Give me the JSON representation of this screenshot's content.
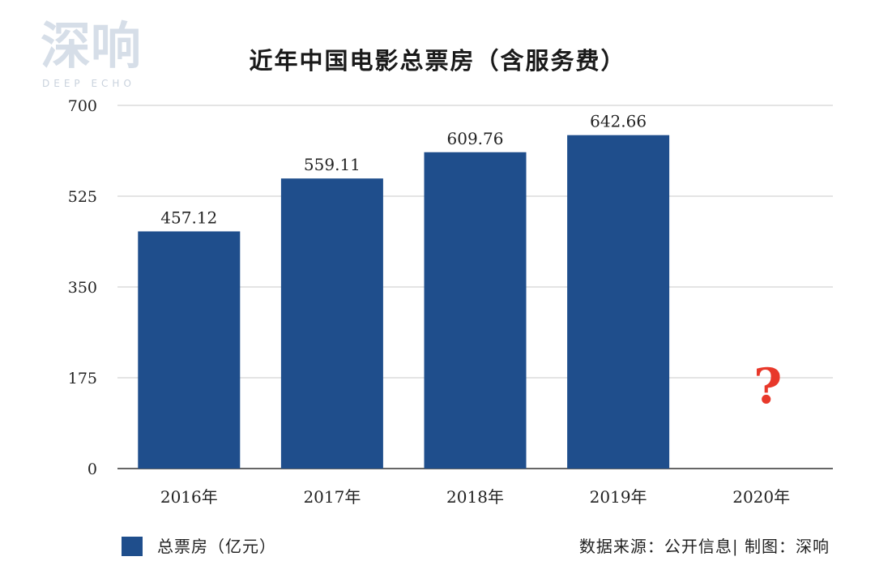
{
  "logo": {
    "cn": "深响",
    "en": "DEEP ECHO"
  },
  "colors": {
    "bar": "#1f4e8c",
    "question": "#e8382a",
    "grid": "#c8c8c8",
    "axis": "#333333"
  },
  "chart_data": {
    "type": "bar",
    "title": "近年中国电影总票房（含服务费）",
    "categories": [
      "2016年",
      "2017年",
      "2018年",
      "2019年",
      "2020年"
    ],
    "series": [
      {
        "name": "总票房（亿元）",
        "values": [
          457.12,
          559.11,
          609.76,
          642.66,
          null
        ]
      }
    ],
    "data_labels": [
      "457.12",
      "559.11",
      "609.76",
      "642.66"
    ],
    "annotation": "?",
    "ylim": [
      0,
      700
    ],
    "yticks": [
      0,
      175,
      350,
      525,
      700
    ],
    "grid": true,
    "legend_position": "bottom-left"
  },
  "legend": {
    "label": "总票房（亿元）"
  },
  "source": "数据来源：公开信息| 制图：深响"
}
